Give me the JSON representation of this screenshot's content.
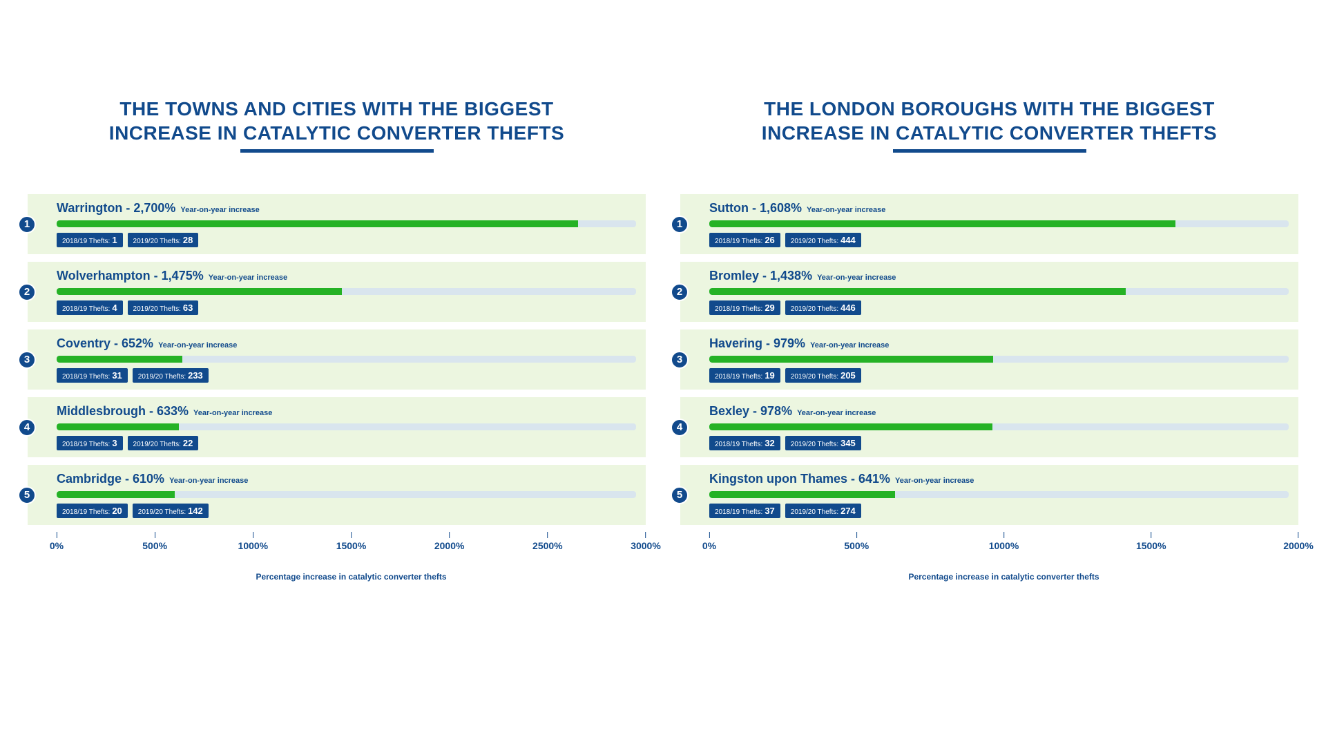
{
  "colors": {
    "primary": "#114a8c",
    "row_bg": "#ecf6e0",
    "bar_fill": "#25b225",
    "bar_track": "#d9e5ee",
    "page_bg": "#ffffff"
  },
  "yoy_label": "Year-on-year increase",
  "axis_caption": "Percentage increase in catalytic converter thefts",
  "panels": [
    {
      "title_line1": "THE TOWNS AND CITIES WITH THE BIGGEST",
      "title_line2": "INCREASE IN CATALYTIC CONVERTER THEFTS",
      "x_max": 3000,
      "x_ticks": [
        "0%",
        "500%",
        "1000%",
        "1500%",
        "2000%",
        "2500%",
        "3000%"
      ],
      "rows": [
        {
          "rank": "1",
          "name": "Warrington",
          "pct_label": "2,700%",
          "pct": 2700,
          "prev_label": "2018/19 Thefts:",
          "prev": "1",
          "curr_label": "2019/20 Thefts:",
          "curr": "28"
        },
        {
          "rank": "2",
          "name": "Wolverhampton",
          "pct_label": "1,475%",
          "pct": 1475,
          "prev_label": "2018/19 Thefts:",
          "prev": "4",
          "curr_label": "2019/20 Thefts:",
          "curr": "63"
        },
        {
          "rank": "3",
          "name": "Coventry",
          "pct_label": "652%",
          "pct": 652,
          "prev_label": "2018/19 Thefts:",
          "prev": "31",
          "curr_label": "2019/20 Thefts:",
          "curr": "233"
        },
        {
          "rank": "4",
          "name": "Middlesbrough",
          "pct_label": "633%",
          "pct": 633,
          "prev_label": "2018/19 Thefts:",
          "prev": "3",
          "curr_label": "2019/20 Thefts:",
          "curr": "22"
        },
        {
          "rank": "5",
          "name": "Cambridge",
          "pct_label": "610%",
          "pct": 610,
          "prev_label": "2018/19 Thefts:",
          "prev": "20",
          "curr_label": "2019/20 Thefts:",
          "curr": "142"
        }
      ]
    },
    {
      "title_line1": "THE LONDON BOROUGHS WITH THE BIGGEST",
      "title_line2": "INCREASE IN CATALYTIC CONVERTER THEFTS",
      "x_max": 2000,
      "x_ticks": [
        "0%",
        "500%",
        "1000%",
        "1500%",
        "2000%"
      ],
      "rows": [
        {
          "rank": "1",
          "name": "Sutton",
          "pct_label": "1,608%",
          "pct": 1608,
          "prev_label": "2018/19 Thefts:",
          "prev": "26",
          "curr_label": "2019/20 Thefts:",
          "curr": "444"
        },
        {
          "rank": "2",
          "name": "Bromley",
          "pct_label": "1,438%",
          "pct": 1438,
          "prev_label": "2018/19 Thefts:",
          "prev": "29",
          "curr_label": "2019/20 Thefts:",
          "curr": "446"
        },
        {
          "rank": "3",
          "name": "Havering",
          "pct_label": "979%",
          "pct": 979,
          "prev_label": "2018/19 Thefts:",
          "prev": "19",
          "curr_label": "2019/20 Thefts:",
          "curr": "205"
        },
        {
          "rank": "4",
          "name": "Bexley",
          "pct_label": "978%",
          "pct": 978,
          "prev_label": "2018/19 Thefts:",
          "prev": "32",
          "curr_label": "2019/20 Thefts:",
          "curr": "345"
        },
        {
          "rank": "5",
          "name": "Kingston upon Thames",
          "pct_label": "641%",
          "pct": 641,
          "prev_label": "2018/19 Thefts:",
          "prev": "37",
          "curr_label": "2019/20 Thefts:",
          "curr": "274"
        }
      ]
    }
  ]
}
